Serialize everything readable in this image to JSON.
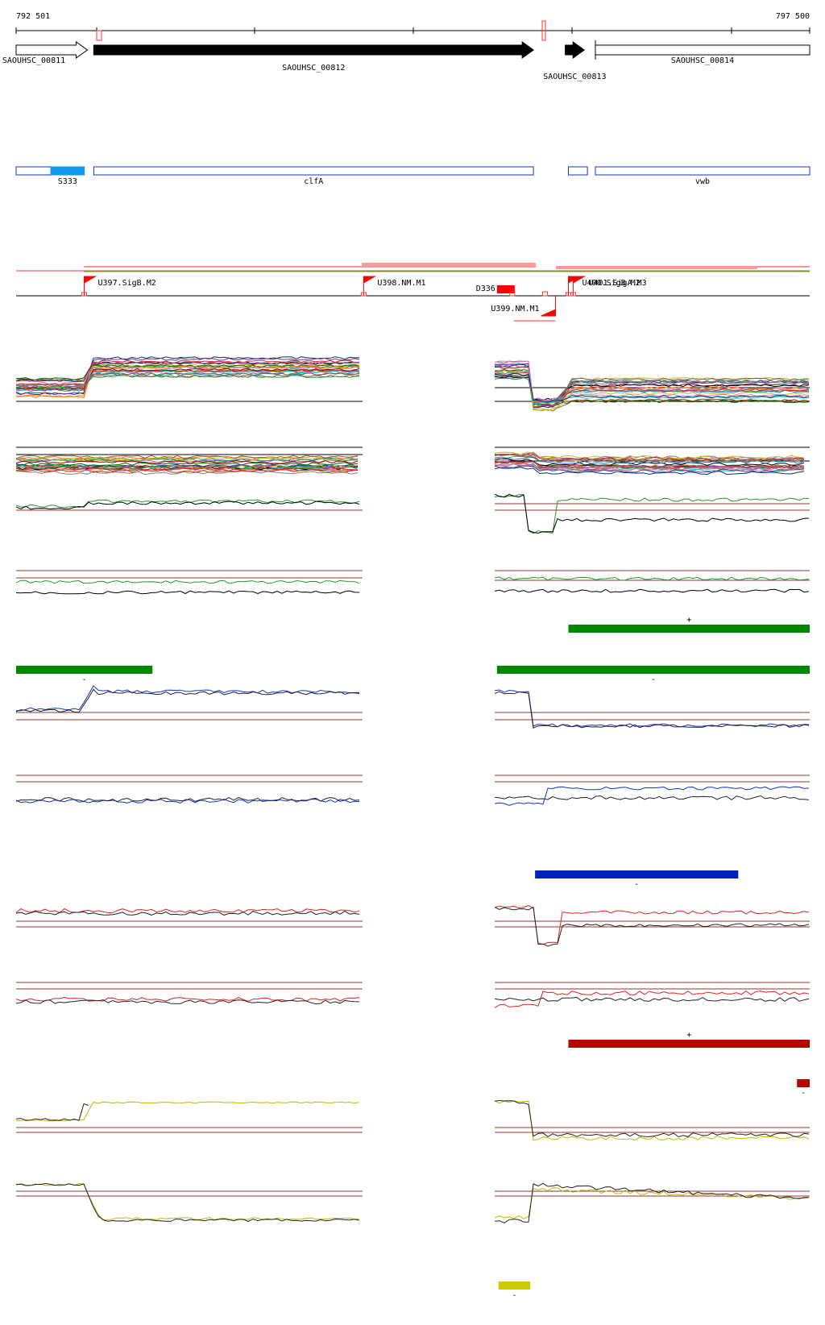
{
  "coords": {
    "start": "792 501",
    "end": "797 500"
  },
  "genes": [
    {
      "label": "SAOUHSC_00811",
      "start": 792501,
      "end": 792950,
      "strand": "+",
      "filled": false
    },
    {
      "label": "SAOUHSC_00812",
      "start": 792990,
      "end": 795760,
      "strand": "+",
      "filled": true
    },
    {
      "label": "SAOUHSC_00813",
      "start": 795960,
      "end": 796080,
      "strand": "+",
      "filled": true
    },
    {
      "label": "SAOUHSC_00814",
      "start": 796150,
      "end": 797500,
      "strand": "+",
      "filled": false
    }
  ],
  "features": [
    {
      "label": "",
      "start": 792501,
      "end": 792720,
      "color": "#1133cc",
      "filled": false
    },
    {
      "label": "S333",
      "start": 792720,
      "end": 792930,
      "color": "#1199ee",
      "filled": true
    },
    {
      "label": "clfA",
      "start": 792990,
      "end": 795760,
      "color": "#1133cc",
      "filled": false
    },
    {
      "label": "",
      "start": 795980,
      "end": 796100,
      "color": "#1133cc",
      "filled": false
    },
    {
      "label": "vwb",
      "start": 796150,
      "end": 797500,
      "color": "#1133cc",
      "filled": false
    }
  ],
  "annotations": [
    {
      "label": "U397.SigB.M2",
      "pos": 792930,
      "strand": "+"
    },
    {
      "label": "U398.NM.M1",
      "pos": 794690,
      "strand": "+"
    },
    {
      "label": "D336",
      "pos": 795530,
      "strand": "-"
    },
    {
      "label": "U399.NM.M1",
      "pos": 795620,
      "strand": "-"
    },
    {
      "label": "U400.SigB.M2",
      "pos": 795980,
      "strand": "+"
    },
    {
      "label": "U401.SigA.M3",
      "pos": 796010,
      "strand": "+"
    }
  ],
  "segments": [
    {
      "label": "+",
      "start": 795980,
      "end": 797500,
      "color": "#008800"
    },
    {
      "label": "-",
      "start": 792501,
      "end": 793360,
      "color": "#008800"
    },
    {
      "label": "-",
      "start": 795530,
      "end": 797500,
      "color": "#008800"
    },
    {
      "label": "-",
      "start": 795770,
      "end": 797050,
      "color": "#0022bb"
    },
    {
      "label": "+",
      "start": 795980,
      "end": 797500,
      "color": "#bb0000"
    },
    {
      "label": "-",
      "start": 797420,
      "end": 797500,
      "color": "#bb0000"
    },
    {
      "label": "-",
      "start": 795540,
      "end": 795740,
      "color": "#cccc00"
    }
  ]
}
